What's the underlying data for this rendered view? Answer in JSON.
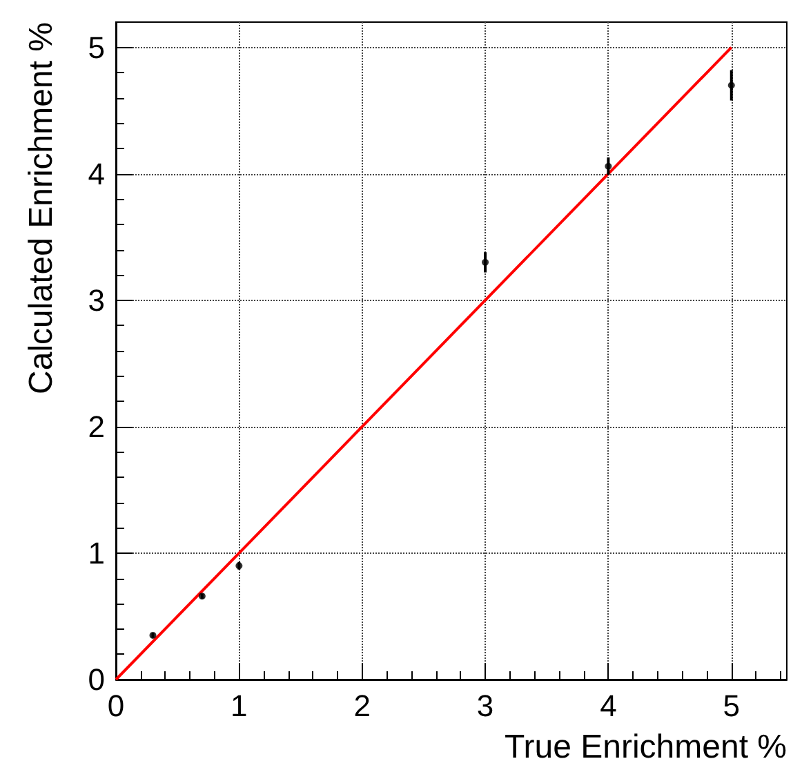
{
  "chart_data": {
    "type": "scatter",
    "xlabel": "True Enrichment %",
    "ylabel": "Calculated Enrichment %",
    "xlim": [
      0,
      5.45
    ],
    "ylim": [
      0,
      5.2
    ],
    "xticks": [
      0,
      1,
      2,
      3,
      4,
      5
    ],
    "yticks": [
      0,
      1,
      2,
      3,
      4,
      5
    ],
    "grid": true,
    "series": [
      {
        "color": "#000000",
        "marker": "circle",
        "x": [
          0.3,
          0.7,
          1,
          3,
          4,
          5
        ],
        "values": [
          0.35,
          0.66,
          0.9,
          3.3,
          4.06,
          4.7
        ],
        "errors": [
          0.02,
          0.02,
          0.03,
          0.08,
          0.07,
          0.12
        ]
      },
      {
        "type": "line",
        "color": "#ff0000",
        "marker": "none",
        "x": [
          0,
          5
        ],
        "values": [
          0,
          5
        ]
      }
    ]
  }
}
